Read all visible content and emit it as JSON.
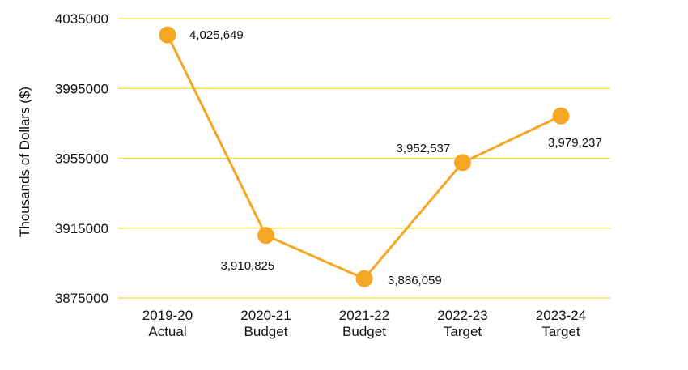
{
  "chart_data": {
    "type": "line",
    "title": "",
    "xlabel": "",
    "ylabel": "Thousands of Dollars ($)",
    "ylim": [
      3875000,
      4035000
    ],
    "yticks": [
      "4035000",
      "3995000",
      "3955000",
      "3915000",
      "3875000"
    ],
    "ytick_values": [
      4035000,
      3995000,
      3955000,
      3915000,
      3875000
    ],
    "categories": [
      [
        "2019-20",
        "Actual"
      ],
      [
        "2020-21",
        "Budget"
      ],
      [
        "2021-22",
        "Budget"
      ],
      [
        "2022-23",
        "Target"
      ],
      [
        "2023-24",
        "Target"
      ]
    ],
    "series": [
      {
        "values": [
          4025649,
          3910825,
          3886059,
          3952537,
          3979237
        ],
        "data_labels": [
          "4,025,649",
          "3,910,825",
          "3,886,059",
          "3,952,537",
          "3,979,237"
        ]
      }
    ],
    "grid": true,
    "legend": "none",
    "colors": {
      "line": "#F5A623",
      "marker": "#F5A623",
      "grid": "#F2E12B"
    }
  }
}
